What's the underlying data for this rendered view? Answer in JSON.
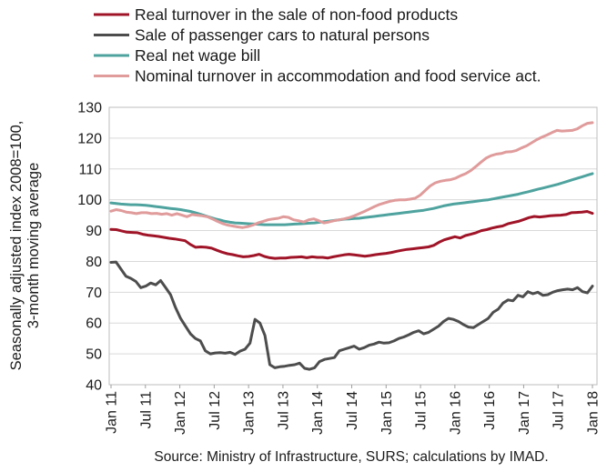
{
  "chart_data": {
    "type": "line",
    "ylabel_line1": "Seasonally adjusted index 2008=100,",
    "ylabel_line2": "3-month moving average",
    "ylim": [
      40,
      130
    ],
    "yticks": [
      40,
      50,
      60,
      70,
      80,
      90,
      100,
      110,
      120,
      130
    ],
    "grid": true,
    "legend_position": "top-left",
    "x_tick_labels": [
      "Jan 11",
      "Jul 11",
      "Jan 12",
      "Jul 12",
      "Jan 13",
      "Jul 13",
      "Jan 14",
      "Jul 14",
      "Jan 15",
      "Jul 15",
      "Jan 16",
      "Jul 16",
      "Jan 17",
      "Jul 17",
      "Jan 18"
    ],
    "x_start": "2011-01",
    "x_end": "2018-01",
    "source": "Source: Ministry of Infrastructure, SURS; calculations by IMAD.",
    "series": [
      {
        "name": "Real turnover in the sale of non-food products",
        "color": "#a01428",
        "values": [
          90.4,
          90.3,
          89.9,
          89.5,
          89.4,
          89.3,
          88.8,
          88.5,
          88.3,
          88.1,
          87.8,
          87.5,
          87.3,
          87.0,
          86.7,
          85.5,
          84.6,
          84.7,
          84.6,
          84.3,
          83.6,
          83.0,
          82.5,
          82.2,
          81.8,
          81.5,
          81.6,
          81.9,
          82.3,
          81.6,
          81.2,
          81.0,
          81.1,
          81.1,
          81.3,
          81.4,
          81.5,
          81.2,
          81.5,
          81.3,
          81.3,
          81.1,
          81.5,
          81.8,
          82.1,
          82.3,
          82.1,
          81.9,
          81.7,
          81.9,
          82.2,
          82.4,
          82.6,
          82.9,
          83.3,
          83.6,
          83.9,
          84.1,
          84.3,
          84.5,
          84.7,
          85.2,
          86.2,
          87.0,
          87.5,
          88.0,
          87.6,
          88.4,
          88.8,
          89.3,
          90.0,
          90.3,
          90.8,
          91.2,
          91.5,
          92.2,
          92.6,
          93.0,
          93.6,
          94.2,
          94.6,
          94.4,
          94.6,
          94.8,
          94.9,
          95.0,
          95.2,
          95.8,
          95.9,
          96.0,
          96.2,
          95.6
        ]
      },
      {
        "name": "Sale of passenger cars to natural persons",
        "color": "#4d4d4d",
        "values": [
          79.7,
          79.8,
          77.5,
          75.2,
          74.5,
          73.5,
          71.5,
          72.0,
          73.0,
          72.4,
          73.8,
          71.5,
          69.2,
          65.0,
          61.5,
          59.0,
          56.5,
          55.0,
          54.2,
          51.0,
          50.0,
          50.3,
          50.4,
          50.2,
          50.5,
          49.8,
          50.9,
          51.5,
          53.5,
          61.2,
          60.0,
          56.0,
          46.5,
          45.5,
          45.8,
          46.0,
          46.3,
          46.5,
          47.0,
          45.3,
          45.0,
          45.5,
          47.5,
          48.2,
          48.5,
          48.8,
          51.0,
          51.5,
          52.0,
          52.5,
          51.5,
          52.0,
          52.8,
          53.2,
          53.8,
          53.5,
          53.6,
          54.2,
          55.0,
          55.5,
          56.2,
          57.0,
          57.5,
          56.5,
          57.0,
          58.0,
          59.0,
          60.5,
          61.5,
          61.2,
          60.5,
          59.5,
          58.7,
          58.5,
          59.5,
          60.5,
          61.5,
          63.5,
          64.5,
          66.5,
          67.5,
          67.2,
          69.0,
          68.5,
          70.2,
          69.5,
          70.0,
          69.0,
          69.2,
          70.0,
          70.5,
          70.8,
          71.0,
          70.8,
          71.5,
          70.2,
          69.8,
          72.0
        ]
      },
      {
        "name": "Real net wage bill",
        "color": "#4fa39f",
        "values": [
          99.0,
          98.8,
          98.6,
          98.5,
          98.4,
          98.4,
          98.3,
          98.2,
          98.0,
          97.8,
          97.6,
          97.4,
          97.2,
          97.0,
          96.8,
          96.5,
          96.2,
          95.8,
          95.3,
          94.8,
          94.3,
          93.8,
          93.4,
          93.0,
          92.7,
          92.5,
          92.4,
          92.3,
          92.2,
          92.1,
          92.0,
          91.9,
          91.9,
          91.9,
          91.9,
          91.9,
          92.0,
          92.1,
          92.2,
          92.3,
          92.4,
          92.5,
          92.7,
          92.9,
          93.1,
          93.3,
          93.5,
          93.7,
          93.8,
          93.9,
          94.0,
          94.2,
          94.4,
          94.6,
          94.8,
          95.0,
          95.2,
          95.4,
          95.6,
          95.8,
          96.0,
          96.2,
          96.4,
          96.6,
          96.9,
          97.2,
          97.6,
          98.0,
          98.3,
          98.6,
          98.8,
          99.0,
          99.2,
          99.4,
          99.6,
          99.8,
          100.0,
          100.3,
          100.6,
          100.9,
          101.2,
          101.5,
          101.8,
          102.2,
          102.6,
          103.0,
          103.4,
          103.8,
          104.2,
          104.6,
          105.0,
          105.5,
          106.0,
          106.5,
          107.0,
          107.5,
          108.0,
          108.5
        ]
      },
      {
        "name": "Nominal turnover in accommodation and food service act.",
        "color": "#e09b9b",
        "values": [
          96.3,
          96.8,
          96.5,
          96.0,
          95.8,
          95.5,
          95.8,
          95.8,
          95.5,
          95.6,
          95.3,
          95.5,
          95.0,
          95.5,
          95.0,
          94.5,
          95.2,
          95.0,
          94.8,
          94.5,
          93.8,
          93.0,
          92.3,
          91.8,
          91.5,
          91.2,
          91.0,
          91.3,
          91.8,
          92.5,
          93.0,
          93.5,
          93.8,
          94.0,
          94.5,
          94.3,
          93.5,
          93.2,
          92.8,
          93.5,
          93.8,
          93.2,
          92.5,
          92.8,
          93.2,
          93.5,
          93.8,
          94.2,
          94.8,
          95.5,
          96.2,
          97.0,
          97.8,
          98.5,
          99.0,
          99.5,
          99.8,
          100.0,
          100.0,
          100.2,
          100.5,
          101.5,
          103.0,
          104.5,
          105.5,
          106.0,
          106.3,
          106.5,
          107.0,
          107.8,
          108.5,
          109.5,
          110.8,
          112.2,
          113.5,
          114.3,
          114.8,
          115.0,
          115.5,
          115.6,
          116.0,
          116.8,
          117.5,
          118.5,
          119.5,
          120.3,
          121.0,
          121.8,
          122.5,
          122.3,
          122.4,
          122.5,
          123.0,
          124.0,
          124.8,
          125.0
        ]
      }
    ]
  }
}
